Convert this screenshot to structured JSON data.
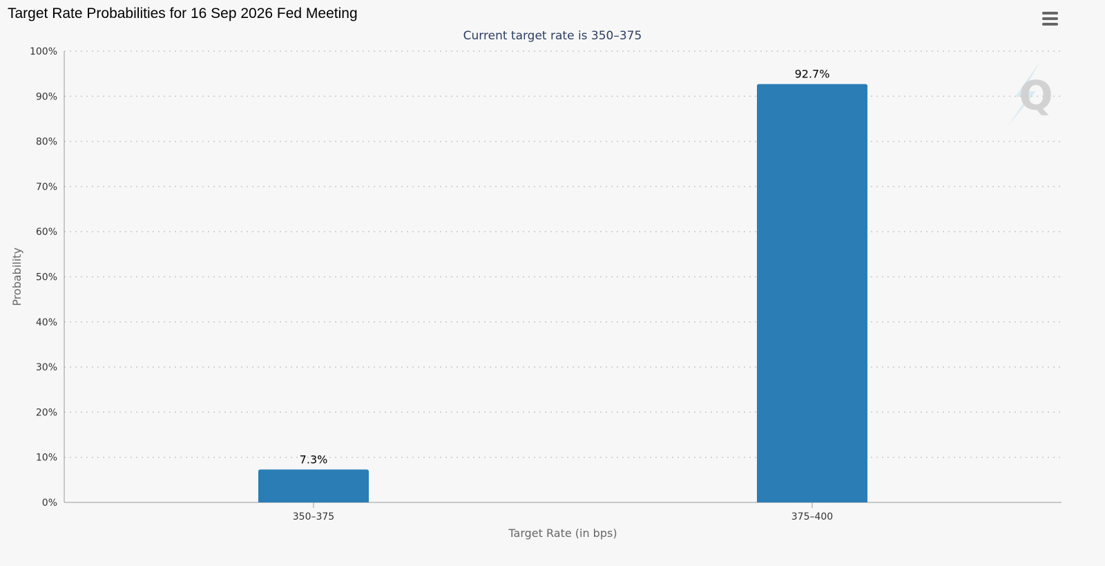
{
  "page": {
    "title": "Target Rate Probabilities for 16 Sep 2026 Fed Meeting",
    "subtitle": "Current target rate is 350–375",
    "menu_icon": "hamburger-menu-icon",
    "watermark_icon": "q-logo-icon"
  },
  "colors": {
    "bar": "#2a7db5",
    "grid": "#c8c8c8",
    "axis": "#999999",
    "background": "#f7f7f7"
  },
  "chart_data": {
    "type": "bar",
    "title": "Target Rate Probabilities for 16 Sep 2026 Fed Meeting",
    "subtitle": "Current target rate is 350–375",
    "xlabel": "Target Rate (in bps)",
    "ylabel": "Probability",
    "categories": [
      "350–375",
      "375–400"
    ],
    "series": [
      {
        "values": [
          7.3,
          92.7
        ]
      }
    ],
    "data_labels": [
      "7.3%",
      "92.7%"
    ],
    "ylim": [
      0,
      100
    ],
    "yticks": [
      0,
      10,
      20,
      30,
      40,
      50,
      60,
      70,
      80,
      90,
      100
    ],
    "ytick_labels": [
      "0%",
      "10%",
      "20%",
      "30%",
      "40%",
      "50%",
      "60%",
      "70%",
      "80%",
      "90%",
      "100%"
    ],
    "grid": true,
    "grid_style": "dotted",
    "legend": "none"
  }
}
